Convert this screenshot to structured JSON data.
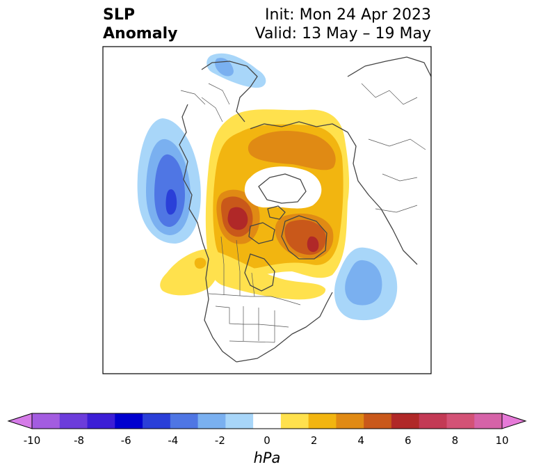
{
  "title": {
    "left_line1": "SLP",
    "left_line2": "Anomaly",
    "right_line1": "Init: Mon 24 Apr 2023",
    "right_line2": "Valid: 13 May – 19 May"
  },
  "colorbar": {
    "units": "hPa",
    "min": -10,
    "max": 10,
    "tick_labels": [
      "-10",
      "-8",
      "-6",
      "-4",
      "-2",
      "0",
      "2",
      "4",
      "6",
      "8",
      "10"
    ],
    "colors": [
      "#d57be8",
      "#a35ce0",
      "#6c3cdb",
      "#3c1ed6",
      "#0000cf",
      "#2a3fd8",
      "#4f76e4",
      "#7ab0f0",
      "#a8d6f9",
      "#ffffff",
      "#ffe14d",
      "#f2b510",
      "#e08a14",
      "#c9581a",
      "#b02828",
      "#c33a55",
      "#d35276",
      "#d663a8",
      "#e67ad8"
    ],
    "extend": "both"
  },
  "map": {
    "region": "North America and Arctic",
    "field": "SLP anomaly"
  }
}
